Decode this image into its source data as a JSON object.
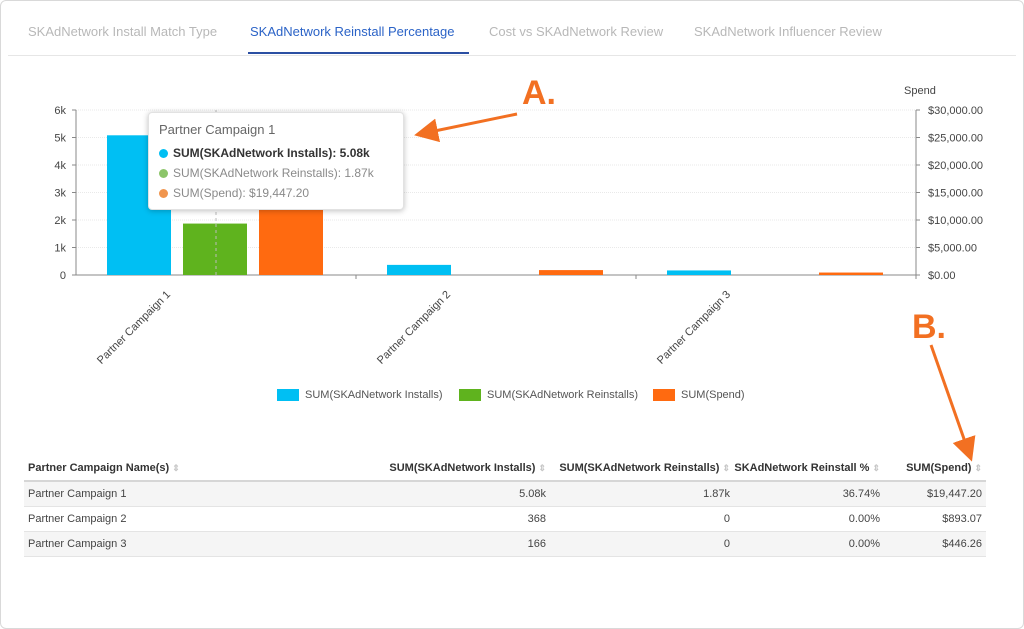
{
  "tabs": [
    {
      "label": "SKAdNetwork Install Match Type",
      "active": false
    },
    {
      "label": "SKAdNetwork Reinstall Percentage",
      "active": true
    },
    {
      "label": "Cost vs SKAdNetwork Review",
      "active": false
    },
    {
      "label": "SKAdNetwork Influencer Review",
      "active": false
    }
  ],
  "chart": {
    "right_axis_title": "Spend",
    "left_ticks": [
      "0",
      "1k",
      "2k",
      "3k",
      "4k",
      "5k",
      "6k"
    ],
    "right_ticks": [
      "$0.00",
      "$5,000.00",
      "$10,000.00",
      "$15,000.00",
      "$20,000.00",
      "$25,000.00",
      "$30,000.00"
    ],
    "colors": {
      "installs": "#00bff3",
      "reinstalls": "#5fb31e",
      "spend": "#ff6a10"
    }
  },
  "chart_data": {
    "type": "bar",
    "categories": [
      "Partner Campaign 1",
      "Partner Campaign 2",
      "Partner Campaign 3"
    ],
    "series": [
      {
        "name": "SUM(SKAdNetwork Installs)",
        "axis": "left",
        "values": [
          5080,
          368,
          166
        ]
      },
      {
        "name": "SUM(SKAdNetwork Reinstalls)",
        "axis": "left",
        "values": [
          1870,
          0,
          0
        ]
      },
      {
        "name": "SUM(Spend)",
        "axis": "right",
        "values": [
          19447.2,
          893.07,
          446.26
        ]
      }
    ],
    "ylim_left": [
      0,
      6000
    ],
    "ylim_right": [
      0,
      30000
    ],
    "ylabel_right": "Spend",
    "legend": "bottom",
    "grid": true
  },
  "legend": [
    {
      "label": "SUM(SKAdNetwork Installs)",
      "color": "#00bff3"
    },
    {
      "label": "SUM(SKAdNetwork Reinstalls)",
      "color": "#5fb31e"
    },
    {
      "label": "SUM(Spend)",
      "color": "#ff6a10"
    }
  ],
  "tooltip": {
    "title": "Partner Campaign 1",
    "rows": [
      {
        "text": "SUM(SKAdNetwork Installs): 5.08k",
        "color": "#00bff3",
        "bold": true
      },
      {
        "text": "SUM(SKAdNetwork Reinstalls): 1.87k",
        "color": "#5fb31e",
        "bold": false
      },
      {
        "text": "SUM(Spend): $19,447.20",
        "color": "#ff6a10",
        "bold": false
      }
    ]
  },
  "table": {
    "headers": [
      "Partner Campaign Name(s)",
      "SUM(SKAdNetwork Installs)",
      "SUM(SKAdNetwork Reinstalls)",
      "SKAdNetwork Reinstall %",
      "SUM(Spend)"
    ],
    "rows": [
      [
        "Partner Campaign 1",
        "5.08k",
        "1.87k",
        "36.74%",
        "$19,447.20"
      ],
      [
        "Partner Campaign 2",
        "368",
        "0",
        "0.00%",
        "$893.07"
      ],
      [
        "Partner Campaign 3",
        "166",
        "0",
        "0.00%",
        "$446.26"
      ]
    ]
  },
  "annotations": {
    "a": "A.",
    "b": "B.",
    "color": "#f27022"
  }
}
